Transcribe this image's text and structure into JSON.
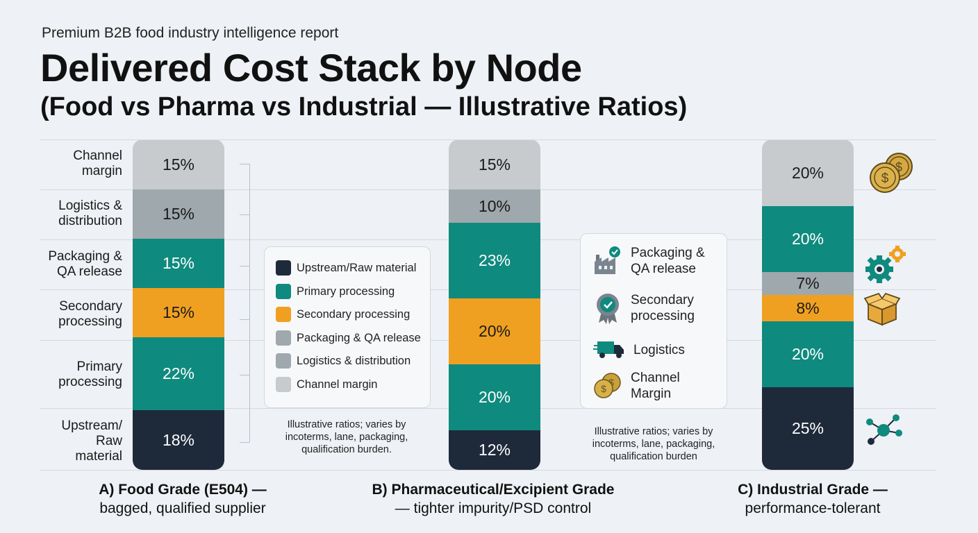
{
  "header": {
    "supertitle": "Premium B2B food industry intelligence report",
    "title": "Delivered Cost Stack by Node",
    "subtitle": "(Food vs Pharma vs Industrial — Illustrative Ratios)"
  },
  "row_labels": [
    [
      "Channel",
      "margin"
    ],
    [
      "Logistics &",
      "distribution"
    ],
    [
      "Packaging &",
      "QA release"
    ],
    [
      "Secondary",
      "processing"
    ],
    [
      "Primary",
      "processing"
    ],
    [
      "Upstream/",
      "Raw",
      "material"
    ]
  ],
  "legend": {
    "items": [
      {
        "label": "Upstream/Raw material",
        "color": "#1e2a3a"
      },
      {
        "label": "Primary processing",
        "color": "#0f8a7e"
      },
      {
        "label": "Secondary processing",
        "color": "#f0a020"
      },
      {
        "label": "Packaging & QA release",
        "color": "#9ea8ad"
      },
      {
        "label": "Logistics & distribution",
        "color": "#9ea8ad"
      },
      {
        "label": "Channel margin",
        "color": "#c8cbce"
      }
    ]
  },
  "icon_legend": {
    "items": [
      {
        "label": "Packaging &\nQA release",
        "icon": "factory-check-icon"
      },
      {
        "label": "Secondary\nprocessing",
        "icon": "quality-badge-icon"
      },
      {
        "label": "Logistics",
        "icon": "truck-icon"
      },
      {
        "label": "Channel\nMargin",
        "icon": "coins-icon"
      }
    ]
  },
  "notes": {
    "a": [
      "Illustrative ratios; varies by",
      "incoterms, lane, packaging,",
      "qualification burden."
    ],
    "b": [
      "Illustrative ratios; varies by",
      "incoterms, lane, packaging,",
      "qualification burden"
    ]
  },
  "captions": [
    {
      "line1": "A) Food Grade (E504) —",
      "line2": "bagged, qualified supplier"
    },
    {
      "line1": "B) Pharmaceutical/Excipient Grade",
      "line2": "— tighter impurity/PSD control"
    },
    {
      "line1": "C) Industrial Grade —",
      "line2": "performance-tolerant"
    }
  ],
  "chart_data": {
    "type": "bar",
    "stacked": true,
    "unit": "%",
    "categories": [
      "A) Food Grade (E504)",
      "B) Pharmaceutical/Excipient Grade",
      "C) Industrial Grade"
    ],
    "series": [
      {
        "name": "Upstream/Raw material",
        "color": "#1e2a3a",
        "values": [
          18,
          12,
          25
        ]
      },
      {
        "name": "Primary processing",
        "color": "#0f8a7e",
        "values": [
          22,
          20,
          20
        ]
      },
      {
        "name": "Secondary processing",
        "color": "#f0a020",
        "values": [
          15,
          20,
          8
        ]
      },
      {
        "name": "Packaging & QA release",
        "color": "#0f8a7e",
        "values": [
          15,
          23,
          7
        ]
      },
      {
        "name": "Logistics & distribution",
        "color": "#9ea8ad",
        "values": [
          15,
          10,
          20
        ]
      },
      {
        "name": "Channel margin",
        "color": "#c8cbce",
        "values": [
          15,
          15,
          20
        ]
      }
    ],
    "segment_colors": [
      [
        "#1e2a3a",
        "#0f8a7e",
        "#f0a020",
        "#0f8a7e",
        "#9ea8ad",
        "#c8cbce"
      ],
      [
        "#1e2a3a",
        "#0f8a7e",
        "#f0a020",
        "#0f8a7e",
        "#9ea8ad",
        "#c8cbce"
      ],
      [
        "#1e2a3a",
        "#0f8a7e",
        "#f0a020",
        "#9ea8ad",
        "#0f8a7e",
        "#c8cbce"
      ]
    ],
    "labels": [
      [
        "18%",
        "22%",
        "15%",
        "15%",
        "15%",
        "15%"
      ],
      [
        "12%",
        "20%",
        "20%",
        "23%",
        "10%",
        "15%"
      ],
      [
        "25%",
        "20%",
        "8%",
        "7%",
        "20%",
        "20%"
      ]
    ]
  }
}
